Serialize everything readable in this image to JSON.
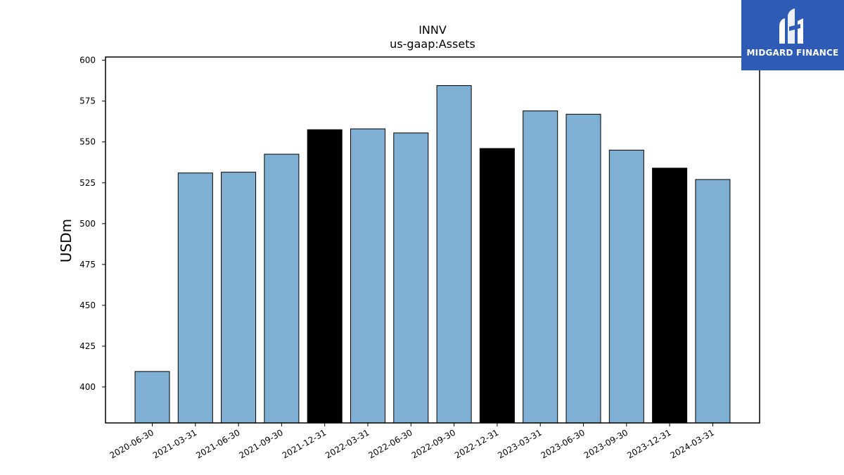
{
  "brand": {
    "name": "MIDGARD FINANCE",
    "logo_bg_color": "#2e5bb5",
    "logo_fg_color": "#ffffff"
  },
  "chart_data": {
    "type": "bar",
    "title": "INNV",
    "subtitle": "us-gaap:Assets",
    "xlabel": "",
    "ylabel": "USDm",
    "ylim": [
      378,
      602
    ],
    "yticks": [
      400,
      425,
      450,
      475,
      500,
      525,
      550,
      575,
      600
    ],
    "grid": false,
    "legend": "none",
    "categories": [
      "2020-06-30",
      "2021-03-31",
      "2021-06-30",
      "2021-09-30",
      "2021-12-31",
      "2022-03-31",
      "2022-06-30",
      "2022-09-30",
      "2022-12-31",
      "2023-03-31",
      "2023-06-30",
      "2023-09-30",
      "2023-12-31",
      "2024-03-31"
    ],
    "values": [
      409.5,
      531,
      531.5,
      542.5,
      557.5,
      558,
      555.5,
      584.5,
      546,
      569,
      567,
      545,
      534,
      527
    ],
    "bar_colors": [
      "#7fafd2",
      "#7fafd2",
      "#7fafd2",
      "#7fafd2",
      "#000000",
      "#7fafd2",
      "#7fafd2",
      "#7fafd2",
      "#000000",
      "#7fafd2",
      "#7fafd2",
      "#7fafd2",
      "#000000",
      "#7fafd2"
    ]
  }
}
